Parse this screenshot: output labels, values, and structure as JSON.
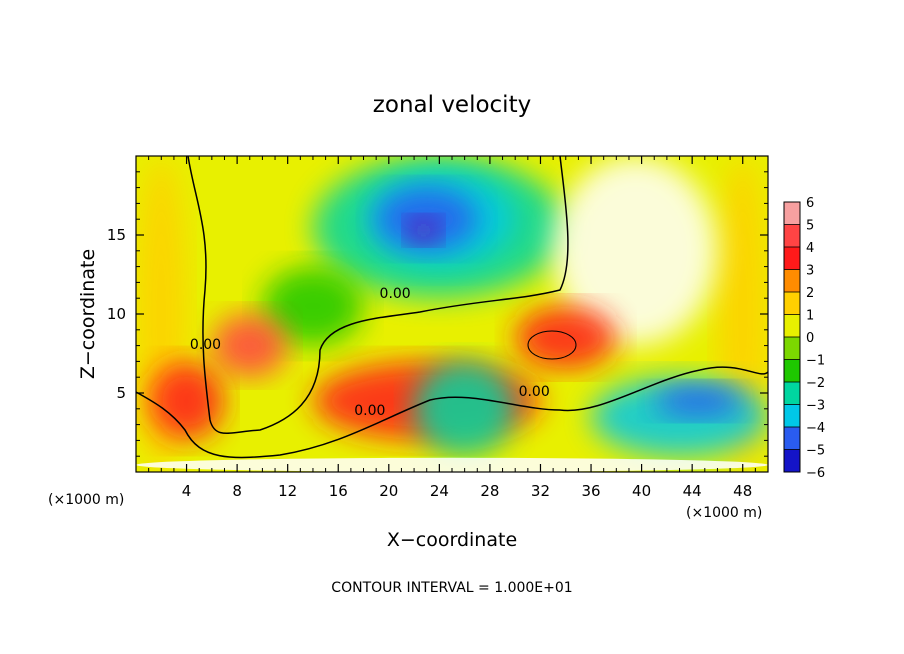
{
  "chart_data": {
    "type": "heatmap",
    "title": "zonal velocity",
    "xlabel": "X−coordinate",
    "ylabel": "Z−coordinate",
    "x_unit_left": "(×1000 m)",
    "x_unit_right": "(×1000 m)",
    "footer": "CONTOUR INTERVAL = 1.000E+01",
    "xlim": [
      0,
      50
    ],
    "ylim": [
      0,
      20
    ],
    "x_ticks": [
      4,
      8,
      12,
      16,
      20,
      24,
      28,
      32,
      36,
      40,
      44,
      48
    ],
    "y_ticks": [
      5,
      10,
      15
    ],
    "colorbar": {
      "levels": [
        6,
        5,
        4,
        3,
        2,
        1,
        0,
        -1,
        -2,
        -3,
        -4,
        -5,
        -6
      ],
      "colors": [
        "#f7a0a0",
        "#ff4444",
        "#ff1a1a",
        "#ff8c00",
        "#ffd000",
        "#e8f000",
        "#7cd800",
        "#1ec800",
        "#00d6a0",
        "#00c8e8",
        "#2a5cf0",
        "#1414c8",
        "#6a0aa8",
        "#7a009a"
      ]
    },
    "contour_labels": [
      {
        "text": "0.00",
        "x": 20.5,
        "z": 11.0
      },
      {
        "text": "0.00",
        "x": 5.5,
        "z": 7.8
      },
      {
        "text": "0.00",
        "x": 18.5,
        "z": 3.6
      },
      {
        "text": "0.00",
        "x": 31.5,
        "z": 4.8
      }
    ],
    "regions": [
      {
        "value": 1,
        "x": 0,
        "z": 0,
        "w": 50,
        "h": 20
      },
      {
        "value": 2,
        "x": 0,
        "z": 0,
        "w": 4,
        "h": 20
      },
      {
        "value": 2,
        "x": 46,
        "z": 0,
        "w": 4,
        "h": 20
      },
      {
        "value": -2,
        "x": 14,
        "z": 11,
        "w": 20,
        "h": 9
      },
      {
        "value": -1,
        "x": 10,
        "z": 8,
        "w": 8,
        "h": 5
      },
      {
        "value": -3,
        "x": 18,
        "z": 13,
        "w": 12,
        "h": 6
      },
      {
        "value": -4,
        "x": 19,
        "z": 14,
        "w": 8,
        "h": 4
      },
      {
        "value": -6,
        "x": 21.5,
        "z": 14.5,
        "w": 2.5,
        "h": 1.6
      },
      {
        "value": 6,
        "x": 33,
        "z": 8,
        "w": 13,
        "h": 12
      },
      {
        "value": 4,
        "x": 30,
        "z": 6.5,
        "w": 8,
        "h": 4
      },
      {
        "value": -3,
        "x": 36,
        "z": 1,
        "w": 14,
        "h": 5
      },
      {
        "value": -4,
        "x": 41,
        "z": 3.5,
        "w": 7,
        "h": 2
      },
      {
        "value": 4,
        "x": 1,
        "z": 2,
        "w": 6,
        "h": 5
      },
      {
        "value": 4,
        "x": 14,
        "z": 2,
        "w": 18,
        "h": 5
      },
      {
        "value": -2,
        "x": 22,
        "z": 1,
        "w": 8,
        "h": 6
      },
      {
        "value": 5,
        "x": 6,
        "z": 6,
        "w": 6,
        "h": 4
      },
      {
        "value": 6,
        "x": 0,
        "z": 0,
        "w": 50,
        "h": 0.9
      }
    ]
  }
}
